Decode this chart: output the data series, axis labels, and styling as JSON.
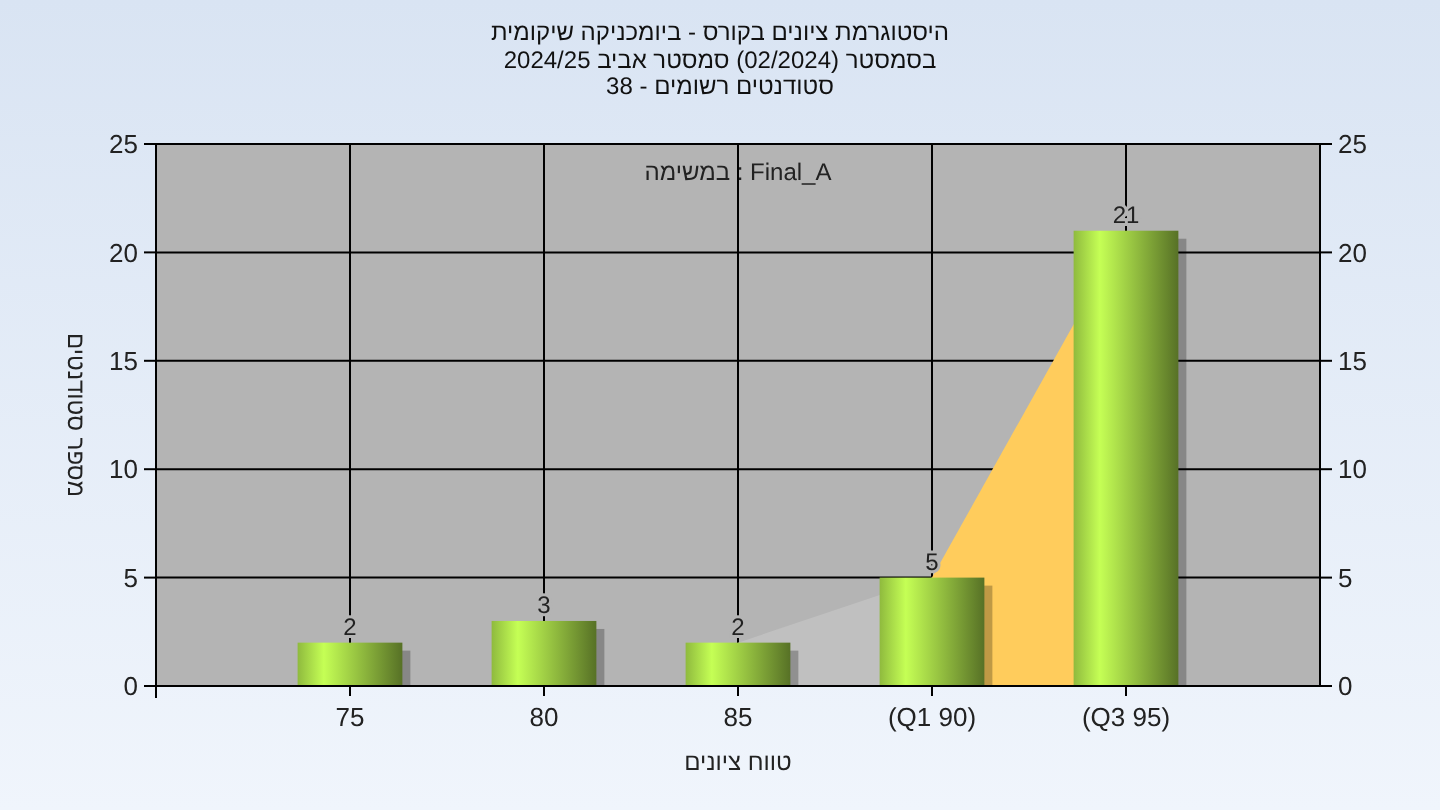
{
  "chart_data": {
    "type": "bar",
    "title": "היסטוגרמת ציונים בקורס - ביומכניקה שיקומית",
    "subtitle": "בסמסטר  (02/2024)  סמסטר אביב 2024/25\nסטודנטים רשומים - 38",
    "xlabel": "טווח ציונים",
    "ylabel": "מספר סטודנטים",
    "annotations": [
      "במשימה : Final_A"
    ],
    "categories": [
      "75",
      "80",
      "85",
      "(Q1 90)",
      "(Q3 95)"
    ],
    "series": [
      {
        "type": "area",
        "color": "#c0c0c0",
        "values": [
          null,
          null,
          2,
          5,
          null
        ]
      },
      {
        "type": "area",
        "color": "#ffcc5c",
        "values": [
          null,
          null,
          null,
          5,
          21
        ]
      },
      {
        "color": "#8fba3e",
        "values": [
          2,
          3,
          2,
          5,
          21
        ],
        "value_labels": [
          "2",
          "3",
          "2",
          "5",
          "21"
        ]
      }
    ],
    "ylim": [
      0,
      25
    ],
    "yticks": [
      0,
      5,
      10,
      15,
      20,
      25
    ],
    "y2lim": [
      0,
      25
    ],
    "y2ticks": [
      0,
      5,
      10,
      15,
      20,
      25
    ],
    "grid": true
  }
}
